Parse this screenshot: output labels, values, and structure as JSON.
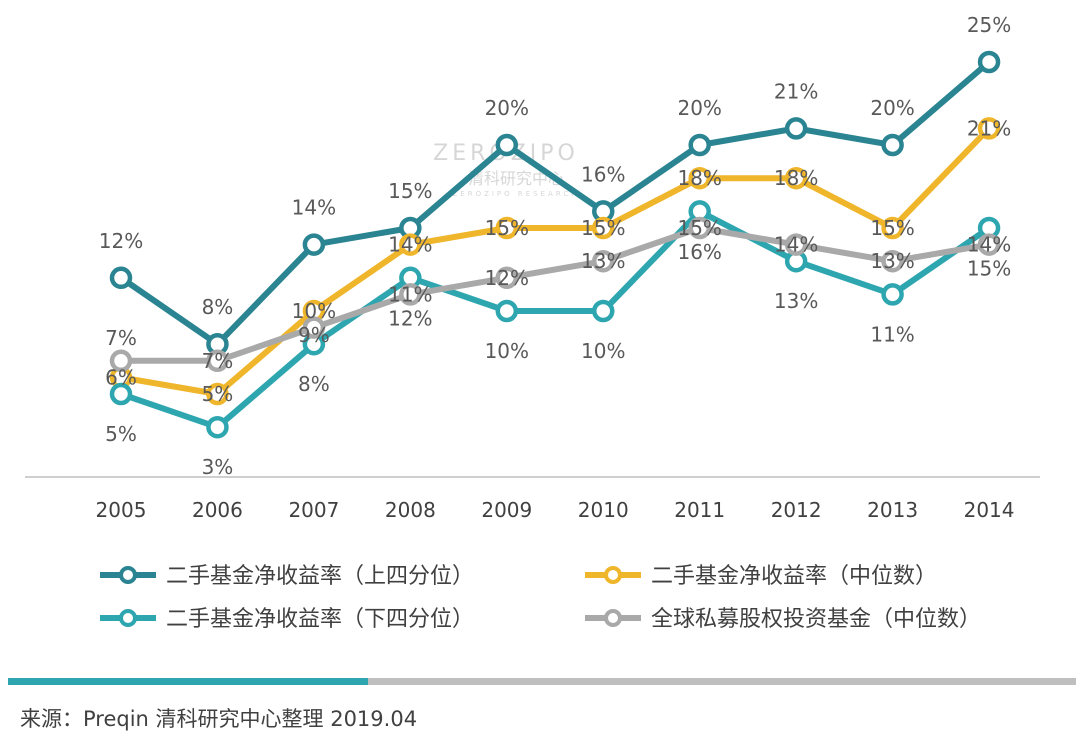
{
  "chart_data": {
    "type": "line",
    "x": [
      "2005",
      "2006",
      "2007",
      "2008",
      "2009",
      "2010",
      "2011",
      "2012",
      "2013",
      "2014"
    ],
    "value_format": "percent",
    "ylim": [
      0,
      26
    ],
    "grid": false,
    "legend_placement": "bottom",
    "series": [
      {
        "name": "二手基金净收益率（上四分位）",
        "color": "#2a8491",
        "values": [
          12,
          8,
          14,
          15,
          20,
          16,
          20,
          21,
          20,
          25
        ],
        "label_position": "above"
      },
      {
        "name": "二手基金净收益率（中位数）",
        "color": "#f0b62b",
        "values": [
          6,
          5,
          10,
          14,
          15,
          15,
          18,
          18,
          15,
          21
        ],
        "label_position": "center"
      },
      {
        "name": "二手基金净收益率（下四分位）",
        "color": "#2ea6b0",
        "values": [
          5,
          3,
          8,
          12,
          10,
          10,
          16,
          13,
          11,
          15
        ],
        "label_position": "below"
      },
      {
        "name": "全球私募股权投资基金（中位数）",
        "color": "#a9a9a9",
        "values": [
          7,
          7,
          9,
          11,
          12,
          13,
          15,
          14,
          13,
          14
        ],
        "label_position": "center"
      }
    ]
  },
  "watermark": {
    "brand": "ZEROZIPO",
    "cn": "清科研究中心",
    "sub": "ZEROZIPO RESEARCH"
  },
  "footer": {
    "source": "来源：Preqin  清科研究中心整理 2019.04",
    "bar_colors": [
      "#2ea6b0",
      "#bfbfbf"
    ]
  }
}
